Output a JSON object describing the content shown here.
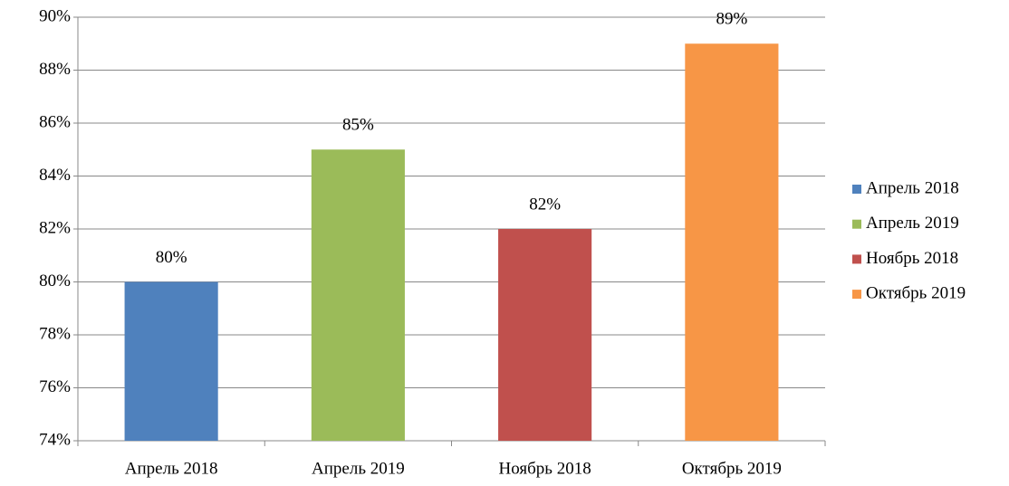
{
  "chart_data": {
    "type": "bar",
    "categories": [
      "Апрель 2018",
      "Апрель 2019",
      "Ноябрь 2018",
      "Октябрь 2019"
    ],
    "values": [
      80,
      85,
      82,
      89
    ],
    "value_labels": [
      "80%",
      "85%",
      "82%",
      "89%"
    ],
    "colors": [
      "#4f81bd",
      "#9bbb59",
      "#c0504d",
      "#f79646"
    ],
    "ylim": [
      74,
      90
    ],
    "yticks": [
      {
        "value": 74,
        "label": "74%"
      },
      {
        "value": 76,
        "label": "76%"
      },
      {
        "value": 78,
        "label": "78%"
      },
      {
        "value": 80,
        "label": "80%"
      },
      {
        "value": 82,
        "label": "82%"
      },
      {
        "value": 84,
        "label": "84%"
      },
      {
        "value": 86,
        "label": "86%"
      },
      {
        "value": 88,
        "label": "88%"
      },
      {
        "value": 90,
        "label": "90%"
      }
    ],
    "grid": true,
    "legend": "right"
  }
}
